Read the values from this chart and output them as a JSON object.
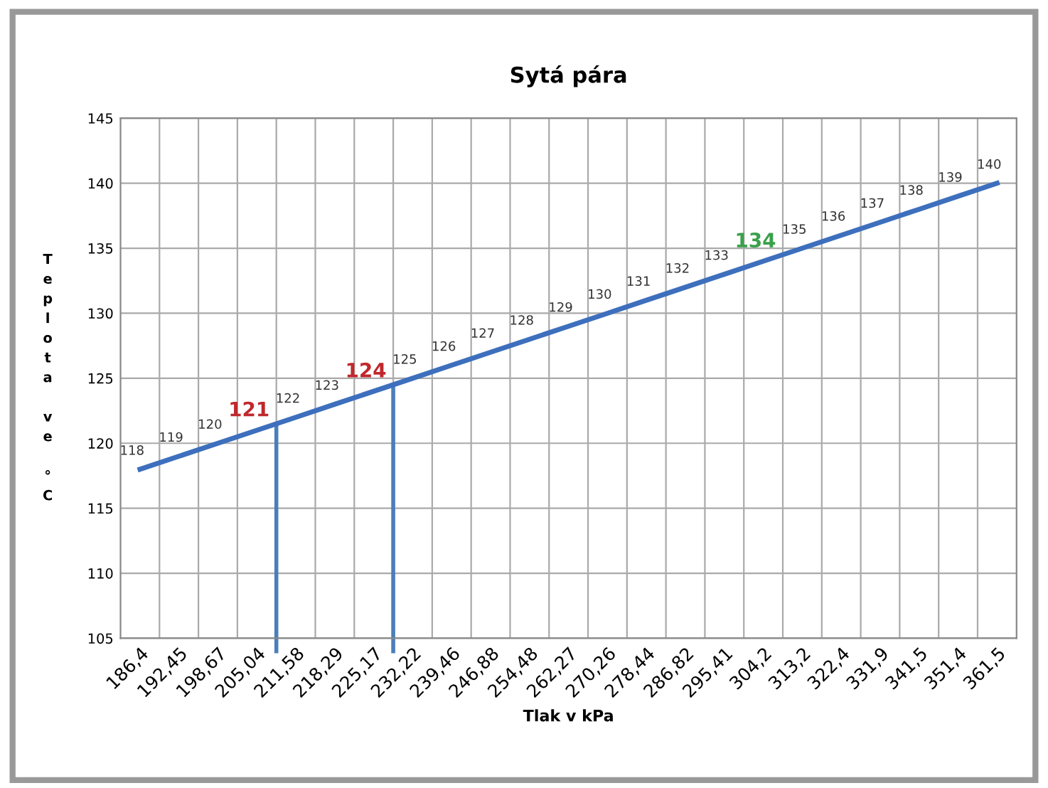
{
  "chart_data": {
    "type": "line",
    "title": "Sytá pára",
    "xlabel": "Tlak v kPa",
    "ylabel": "Teplota ve °C",
    "categories": [
      "186,4",
      "192,45",
      "198,67",
      "205,04",
      "211,58",
      "218,29",
      "225,17",
      "232,22",
      "239,46",
      "246,88",
      "254,48",
      "262,27",
      "270,26",
      "278,44",
      "286,82",
      "295,41",
      "304,2",
      "313,2",
      "322,4",
      "331,9",
      "341,5",
      "351,4",
      "361,5"
    ],
    "series": [
      {
        "color": "#3d6fbd",
        "values": [
          118,
          119,
          120,
          121,
          122,
          123,
          124,
          125,
          126,
          127,
          128,
          129,
          130,
          131,
          132,
          133,
          134,
          135,
          136,
          137,
          138,
          139,
          140
        ],
        "value_labels": [
          "118",
          "119",
          "120",
          null,
          "122",
          "123",
          null,
          "125",
          "126",
          "127",
          "128",
          "129",
          "130",
          "131",
          "132",
          "133",
          null,
          "135",
          "136",
          "137",
          "138",
          "139",
          "140"
        ]
      }
    ],
    "annotations": [
      {
        "text": "121",
        "x": "205,04",
        "y": 121
      },
      {
        "text": "124",
        "x": "225,17",
        "y": 124
      },
      {
        "text": "134",
        "x": "304,2",
        "y": 134
      }
    ],
    "ref_lines": [
      {
        "axis": "x",
        "value": "205,04",
        "color": "#4a7ebb"
      },
      {
        "axis": "x",
        "value": "225,17",
        "color": "#4a7ebb"
      }
    ],
    "ylim": [
      105,
      145
    ],
    "yticks": [
      105,
      110,
      115,
      120,
      125,
      130,
      135,
      140,
      145
    ],
    "grid": true,
    "marker": "none",
    "line_style": "solid",
    "legend": false
  }
}
